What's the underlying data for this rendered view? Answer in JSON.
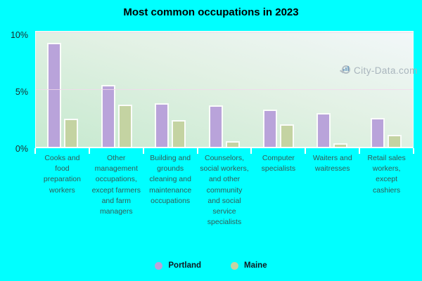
{
  "title": "Most common occupations in 2023",
  "watermark": {
    "text": "City-Data.com"
  },
  "colors": {
    "page_background": "#00ffff",
    "portland": "#b9a3da",
    "maine": "#c4d3a2",
    "plot_gradient_top": "#f2f7f9",
    "plot_gradient_bottom": "#c6e9cf",
    "gridline": "#f2d8ec",
    "axis_tick": "#ffffff",
    "category_label_text": "#335a56",
    "watermark_text": "#a9b5bd"
  },
  "chart_data": {
    "type": "bar",
    "title": "Most common occupations in 2023",
    "categories": [
      "Cooks and food preparation workers",
      "Other management occupations, except farmers and farm managers",
      "Building and grounds cleaning and maintenance occupations",
      "Counselors, social workers, and other community and social service specialists",
      "Computer specialists",
      "Waiters and waitresses",
      "Retail sales workers, except cashiers"
    ],
    "series": [
      {
        "name": "Portland",
        "color": "#b9a3da",
        "values": [
          9.3,
          5.5,
          3.9,
          3.7,
          3.3,
          3.0,
          2.6
        ]
      },
      {
        "name": "Maine",
        "color": "#c4d3a2",
        "values": [
          2.5,
          3.8,
          2.4,
          0.5,
          2.0,
          0.3,
          1.1
        ]
      }
    ],
    "xlabel": "",
    "ylabel": "",
    "yticks": [
      {
        "label": "0%",
        "value": 0
      },
      {
        "label": "5%",
        "value": 5
      },
      {
        "label": "10%",
        "value": 10
      }
    ],
    "ylim": [
      0,
      10.3
    ],
    "grid": true,
    "legend_position": "bottom"
  },
  "legend": {
    "items": [
      {
        "label": "Portland",
        "color": "#b9a3da"
      },
      {
        "label": "Maine",
        "color": "#c4d3a2"
      }
    ]
  }
}
